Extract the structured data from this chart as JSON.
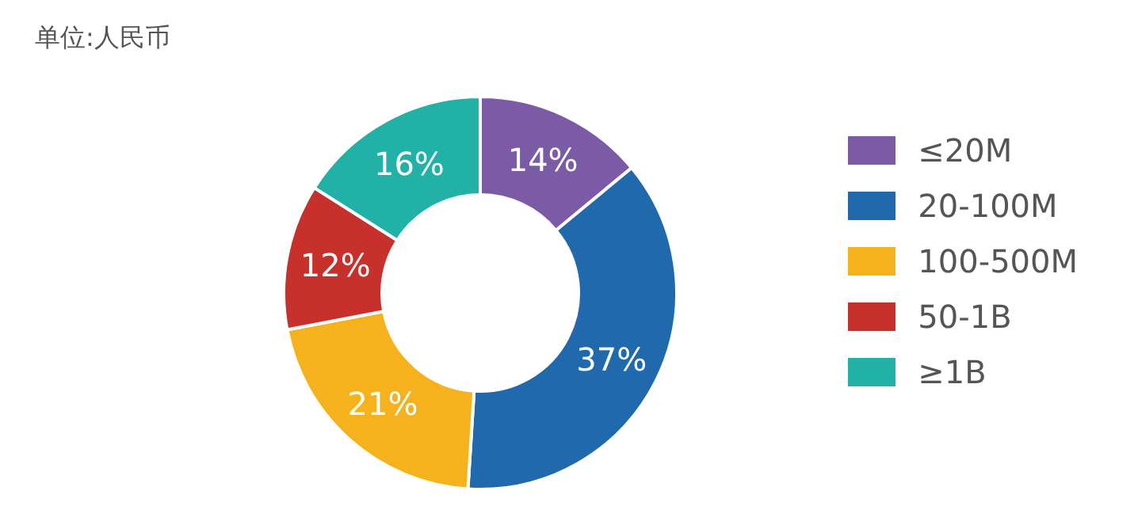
{
  "chart_data": {
    "type": "donut",
    "title": "单位:人民币",
    "categories": [
      "≤20M",
      "20-100M",
      "100-500M",
      "50-1B",
      "≥1B"
    ],
    "values": [
      14,
      37,
      21,
      12,
      16
    ],
    "value_labels": [
      "14%",
      "37%",
      "21%",
      "12%",
      "16%"
    ],
    "colors": [
      "#7b5aa6",
      "#1f69ac",
      "#f5b21c",
      "#c8312b",
      "#22b1a6"
    ],
    "legend": "right"
  }
}
